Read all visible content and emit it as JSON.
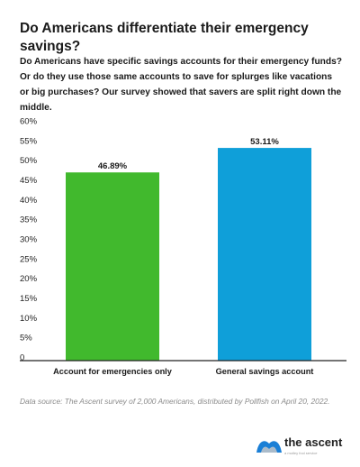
{
  "title": "Do Americans differentiate their emergency savings?",
  "description": "Do Americans have specific savings accounts for their emergency funds? Or do they use those same accounts to save for splurges like vacations or big purchases? Our survey showed that savers are split right down the middle.",
  "source": "Data source: The Ascent survey of 2,000 Americans, distributed by Pollfish on April 20, 2022.",
  "brand": {
    "name": "the ascent",
    "tagline": "a motley fool service",
    "icon": "ascent-logo-icon"
  },
  "chart_data": {
    "type": "bar",
    "categories": [
      "Account for emergencies only",
      "General savings account"
    ],
    "values": [
      46.89,
      53.11
    ],
    "data_labels": [
      "46.89%",
      "53.11%"
    ],
    "colors": [
      "#41b92d",
      "#0f9fd9"
    ],
    "yticks": [
      "0",
      "5%",
      "10%",
      "15%",
      "20%",
      "25%",
      "30%",
      "35%",
      "40%",
      "45%",
      "50%",
      "55%",
      "60%"
    ],
    "ylim": [
      0,
      60
    ],
    "grid": false,
    "xlabel": "",
    "ylabel": ""
  }
}
